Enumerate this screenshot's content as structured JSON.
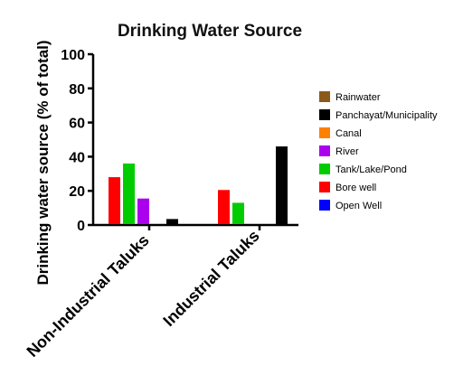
{
  "chart_data": {
    "type": "bar",
    "title": "Drinking Water Source",
    "xlabel": "",
    "ylabel": "Drinking water source (% of total)",
    "ylim": [
      0,
      100
    ],
    "yticks": [
      "0",
      "20",
      "40",
      "60",
      "80",
      "100"
    ],
    "categories": [
      "Non-Industrial Taluks",
      "Industrial Taluks"
    ],
    "legend_position": "right",
    "series": [
      {
        "name": "Bore well",
        "color": "#ff0000",
        "values": [
          28,
          20.5
        ]
      },
      {
        "name": "Tank/Lake/Pond",
        "color": "#00cc00",
        "values": [
          36,
          13
        ]
      },
      {
        "name": "River",
        "color": "#aa00ee",
        "values": [
          15.5,
          0
        ]
      },
      {
        "name": "Canal",
        "color": "#ff7f00",
        "values": [
          0,
          0
        ]
      },
      {
        "name": "Panchayat/Municipality",
        "color": "#000000",
        "values": [
          3.5,
          46
        ]
      },
      {
        "name": "Rainwater",
        "color": "#8b5a1a",
        "values": [
          0,
          0
        ]
      },
      {
        "name": "Open Well",
        "color": "#0000ff",
        "values": [
          0,
          0
        ]
      }
    ],
    "legend_order": [
      "Rainwater",
      "Panchayat/Municipality",
      "Canal",
      "River",
      "Tank/Lake/Pond",
      "Bore well",
      "Open Well"
    ],
    "grid": false
  }
}
